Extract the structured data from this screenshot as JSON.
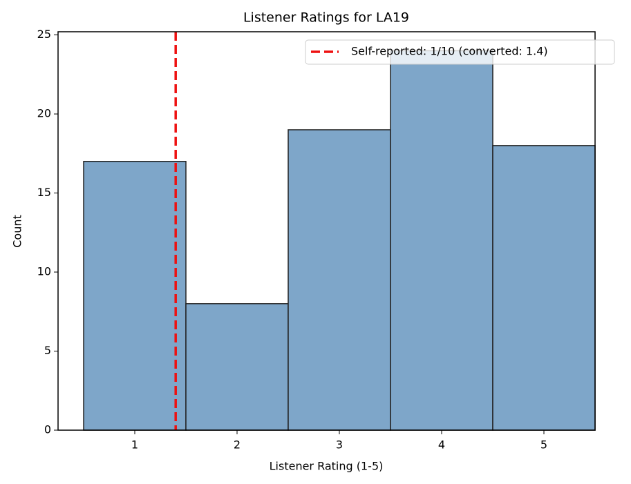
{
  "chart_data": {
    "type": "histogram",
    "title": "Listener Ratings for LA19",
    "xlabel": "Listener Rating (1-5)",
    "ylabel": "Count",
    "bins": [
      0.5,
      1.5,
      2.5,
      3.5,
      4.5,
      5.5
    ],
    "counts": [
      17,
      8,
      19,
      24,
      18
    ],
    "color": "#7ea6c9",
    "edgecolor": "#222222",
    "xlim": [
      0.25,
      5.5
    ],
    "ylim": [
      0,
      25.2
    ],
    "xticks": [
      1,
      2,
      3,
      4,
      5
    ],
    "yticks": [
      0,
      5,
      10,
      15,
      20,
      25
    ],
    "vline": {
      "x": 1.4,
      "color": "#ee1111",
      "label": "Self-reported: 1/10 (converted: 1.4)"
    },
    "legend": "upper right"
  }
}
